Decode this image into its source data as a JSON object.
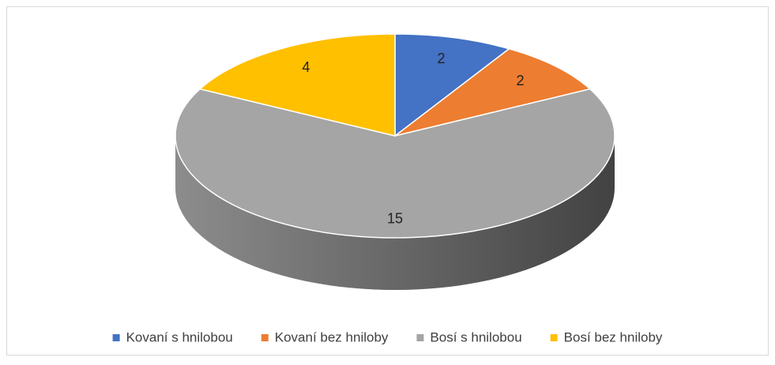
{
  "chart_data": {
    "type": "pie",
    "style": "3d",
    "categories": [
      "Kovaní s hnilobou",
      "Kovaní bez hniloby",
      "Bosí s hnilobou",
      "Bosí bez hniloby"
    ],
    "values": [
      2,
      2,
      15,
      4
    ],
    "colors": [
      "#4472c4",
      "#ed7d31",
      "#a5a5a5",
      "#ffc000"
    ],
    "legend": "bottom"
  }
}
